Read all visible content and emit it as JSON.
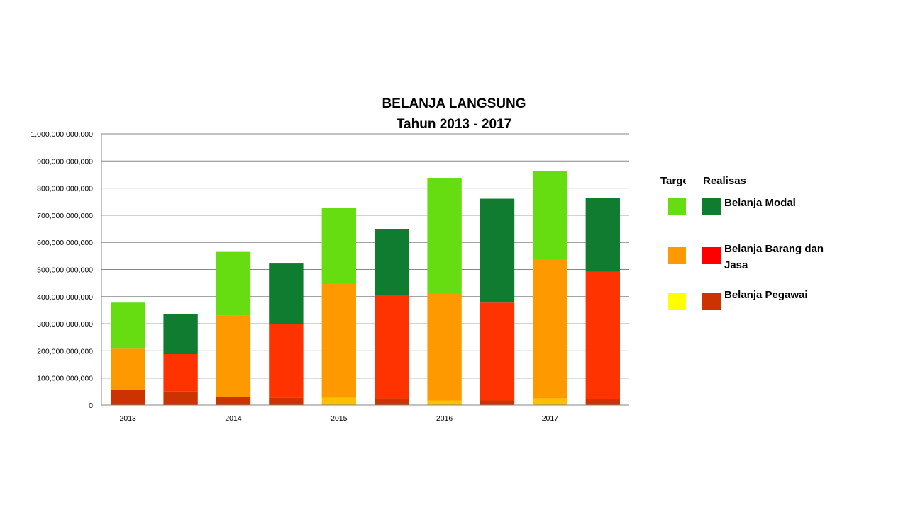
{
  "chart_data": {
    "type": "bar",
    "stacked": true,
    "title": "BELANJA LANGSUNG",
    "subtitle": "Tahun 2013 - 2017",
    "categories": [
      "2013",
      "2014",
      "2015",
      "2016",
      "2017"
    ],
    "bar_kinds": [
      "Target",
      "Realisasi"
    ],
    "ylim": [
      0,
      1000000000000
    ],
    "ytick_labels": [
      "0",
      "100,000,000,000",
      "200,000,000,000",
      "300,000,000,000",
      "400,000,000,000",
      "500,000,000,000",
      "600,000,000,000",
      "700,000,000,000",
      "800,000,000,000",
      "900,000,000,000",
      "1,000,000,000,000"
    ],
    "grid": true,
    "legend_position": "right",
    "legend_headers": {
      "target": "Target",
      "realisasi": "Realisasi"
    },
    "series": [
      {
        "name": "Belanja Pegawai",
        "target_color": "#FFFF00",
        "realisasi_color": "#CC3300",
        "target": [
          55000000000,
          30000000000,
          27000000000,
          17000000000,
          25000000000
        ],
        "realisasi": [
          50000000000,
          28000000000,
          25000000000,
          17000000000,
          23000000000
        ],
        "target_bar_colors": [
          "#CC3300",
          "#CC3300",
          "#FFC000",
          "#FFC000",
          "#FFC000"
        ]
      },
      {
        "name": "Belanja Barang dan Jasa",
        "target_color": "#FF9900",
        "realisasi_color": "#FF0000",
        "target": [
          153000000000,
          300000000000,
          423000000000,
          393000000000,
          515000000000
        ],
        "realisasi": [
          138000000000,
          272000000000,
          382000000000,
          361000000000,
          469000000000
        ],
        "target_bar_colors": [
          "#FF9900",
          "#FF9900",
          "#FF9900",
          "#FF9900",
          "#FF9900"
        ],
        "realisasi_bar_color": "#FF3300"
      },
      {
        "name": "Belanja Modal",
        "target_color": "#66DD11",
        "realisasi_color": "#107C30",
        "target": [
          170000000000,
          235000000000,
          278000000000,
          428000000000,
          323000000000
        ],
        "realisasi": [
          147000000000,
          222000000000,
          243000000000,
          383000000000,
          272000000000
        ]
      }
    ]
  }
}
